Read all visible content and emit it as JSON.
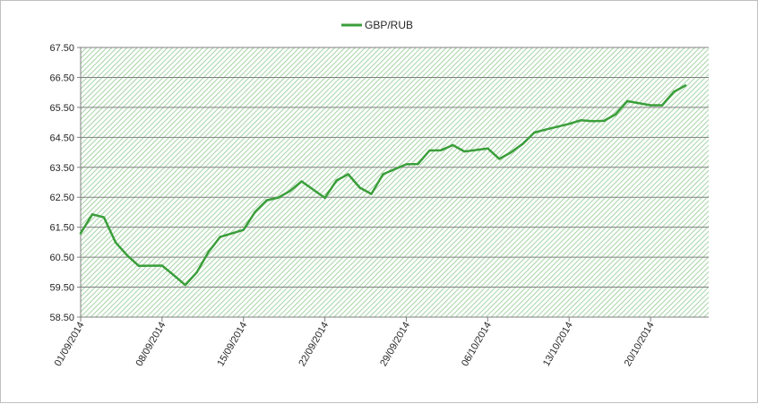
{
  "chart_data": {
    "type": "line",
    "title": "",
    "xlabel": "",
    "ylabel": "",
    "ylim": [
      58.5,
      67.5
    ],
    "yticks": [
      "67.50",
      "66.50",
      "65.50",
      "64.50",
      "63.50",
      "62.50",
      "61.50",
      "60.50",
      "59.50",
      "58.50"
    ],
    "xtick_labels": [
      "01/09/2014",
      "08/09/2014",
      "15/09/2014",
      "22/09/2014",
      "29/09/2014",
      "06/10/2014",
      "13/10/2014",
      "20/10/2014"
    ],
    "x_range": [
      "2014-09-01",
      "2014-10-25"
    ],
    "legend_position": "top-center",
    "grid": true,
    "series": [
      {
        "name": "GBP/RUB",
        "color": "#3a9e3a",
        "x": [
          "2014-09-01",
          "2014-09-02",
          "2014-09-03",
          "2014-09-04",
          "2014-09-05",
          "2014-09-06",
          "2014-09-08",
          "2014-09-09",
          "2014-09-10",
          "2014-09-11",
          "2014-09-12",
          "2014-09-13",
          "2014-09-15",
          "2014-09-16",
          "2014-09-17",
          "2014-09-18",
          "2014-09-19",
          "2014-09-20",
          "2014-09-22",
          "2014-09-23",
          "2014-09-24",
          "2014-09-25",
          "2014-09-26",
          "2014-09-27",
          "2014-09-29",
          "2014-09-30",
          "2014-10-01",
          "2014-10-02",
          "2014-10-03",
          "2014-10-04",
          "2014-10-06",
          "2014-10-07",
          "2014-10-08",
          "2014-10-09",
          "2014-10-10",
          "2014-10-11",
          "2014-10-13",
          "2014-10-14",
          "2014-10-15",
          "2014-10-16",
          "2014-10-17",
          "2014-10-18",
          "2014-10-20",
          "2014-10-21",
          "2014-10-22",
          "2014-10-23"
        ],
        "values": [
          61.3,
          61.93,
          61.83,
          61.0,
          60.56,
          60.21,
          60.22,
          59.9,
          59.57,
          60.0,
          60.68,
          61.18,
          61.41,
          62.01,
          62.4,
          62.49,
          62.71,
          63.03,
          62.48,
          63.06,
          63.27,
          62.82,
          62.61,
          63.27,
          63.6,
          63.61,
          64.06,
          64.07,
          64.24,
          64.03,
          64.13,
          63.78,
          64.0,
          64.28,
          64.66,
          64.76,
          64.95,
          65.07,
          65.04,
          65.05,
          65.27,
          65.71,
          65.57,
          65.57,
          66.02,
          66.23
        ]
      }
    ]
  }
}
